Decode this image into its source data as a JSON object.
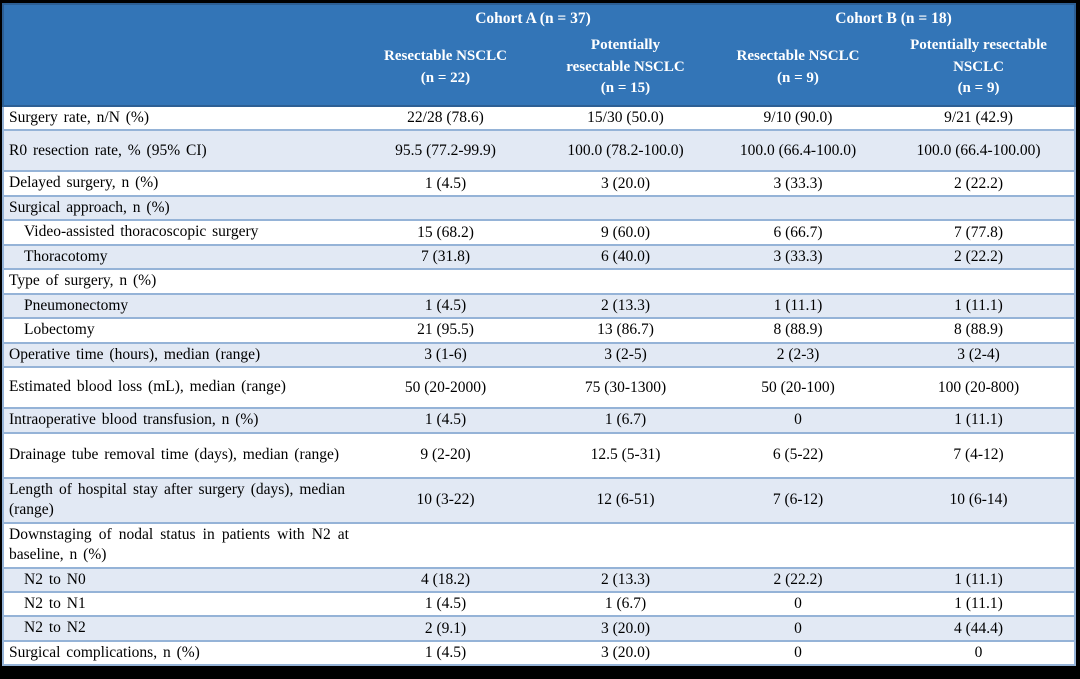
{
  "table": {
    "header": {
      "cohorts": [
        {
          "label": "Cohort A (n = 37)"
        },
        {
          "label": "Cohort B (n = 18)"
        }
      ],
      "subcolumns": [
        {
          "lines": [
            "Resectable NSCLC",
            "(n = 22)"
          ]
        },
        {
          "lines": [
            "Potentially",
            "resectable NSCLC",
            "(n = 15)"
          ]
        },
        {
          "lines": [
            "Resectable NSCLC",
            "(n = 9)"
          ]
        },
        {
          "lines": [
            "Potentially resectable",
            "NSCLC",
            "(n = 9)"
          ]
        }
      ]
    },
    "rows": [
      {
        "label": "Surgery rate, n/N (%)",
        "indent": false,
        "size": "normal",
        "values": [
          "22/28 (78.6)",
          "15/30 (50.0)",
          "9/10 (90.0)",
          "9/21 (42.9)"
        ]
      },
      {
        "label": "R0 resection rate, % (95% CI)",
        "indent": false,
        "size": "tall",
        "values": [
          "95.5 (77.2-99.9)",
          "100.0 (78.2-100.0)",
          "100.0 (66.4-100.0)",
          "100.0 (66.4-100.00)"
        ]
      },
      {
        "label": "Delayed surgery, n (%)",
        "indent": false,
        "size": "normal",
        "values": [
          "1 (4.5)",
          "3 (20.0)",
          "3 (33.3)",
          "2 (22.2)"
        ]
      },
      {
        "label": "Surgical approach, n (%)",
        "indent": false,
        "size": "normal",
        "values": null
      },
      {
        "label": "Video-assisted thoracoscopic surgery",
        "indent": true,
        "size": "normal",
        "values": [
          "15 (68.2)",
          "9 (60.0)",
          "6 (66.7)",
          "7 (77.8)"
        ]
      },
      {
        "label": "Thoracotomy",
        "indent": true,
        "size": "normal",
        "values": [
          "7 (31.8)",
          "6 (40.0)",
          "3 (33.3)",
          "2 (22.2)"
        ]
      },
      {
        "label": "Type of surgery, n (%)",
        "indent": false,
        "size": "normal",
        "values": null
      },
      {
        "label": "Pneumonectomy",
        "indent": true,
        "size": "normal",
        "values": [
          "1 (4.5)",
          "2 (13.3)",
          "1 (11.1)",
          "1 (11.1)"
        ]
      },
      {
        "label": "Lobectomy",
        "indent": true,
        "size": "normal",
        "values": [
          "21 (95.5)",
          "13 (86.7)",
          "8 (88.9)",
          "8 (88.9)"
        ]
      },
      {
        "label": "Operative time (hours), median (range)",
        "indent": false,
        "size": "normal",
        "values": [
          "3 (1-6)",
          "3 (2-5)",
          "2 (2-3)",
          "3 (2-4)"
        ]
      },
      {
        "label": "Estimated blood loss (mL), median (range)",
        "indent": false,
        "size": "tall",
        "values": [
          "50 (20-2000)",
          "75 (30-1300)",
          "50 (20-100)",
          "100 (20-800)"
        ]
      },
      {
        "label": "Intraoperative blood transfusion, n (%)",
        "indent": false,
        "size": "normal",
        "values": [
          "1 (4.5)",
          "1 (6.7)",
          "0",
          "1 (11.1)"
        ]
      },
      {
        "label": "Drainage tube removal time (days), median (range)",
        "indent": false,
        "size": "twoline",
        "values": [
          "9 (2-20)",
          "12.5 (5-31)",
          "6 (5-22)",
          "7 (4-12)"
        ]
      },
      {
        "label": "Length of hospital stay after surgery (days), median (range)",
        "indent": false,
        "size": "twoline",
        "values": [
          "10 (3-22)",
          "12 (6-51)",
          "7 (6-12)",
          "10 (6-14)"
        ]
      },
      {
        "label": "Downstaging of nodal status in patients with N2 at baseline, n (%)",
        "indent": false,
        "size": "twoline",
        "values": null
      },
      {
        "label": "N2 to N0",
        "indent": true,
        "size": "normal",
        "values": [
          "4 (18.2)",
          "2 (13.3)",
          "2 (22.2)",
          "1 (11.1)"
        ]
      },
      {
        "label": "N2 to N1",
        "indent": true,
        "size": "normal",
        "values": [
          "1 (4.5)",
          "1 (6.7)",
          "0",
          "1 (11.1)"
        ]
      },
      {
        "label": "N2 to N2",
        "indent": true,
        "size": "normal",
        "values": [
          "2 (9.1)",
          "3 (20.0)",
          "0",
          "4 (44.4)"
        ]
      },
      {
        "label": "Surgical complications, n (%)",
        "indent": false,
        "size": "normal",
        "values": [
          "1 (4.5)",
          "3 (20.0)",
          "0",
          "0"
        ]
      }
    ]
  },
  "colors": {
    "header_bg": "#3375b7",
    "header_border": "#2d5f94",
    "band_bg": "#e2e9f4",
    "row_border": "#95b3d7",
    "frame": "#000000",
    "header_text": "#ffffff",
    "body_text": "#000000"
  }
}
